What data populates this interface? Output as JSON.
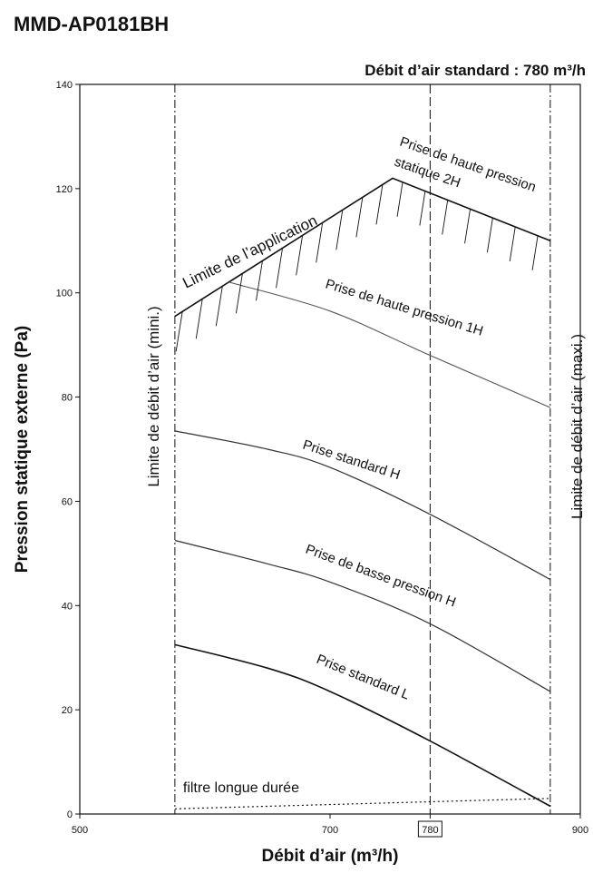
{
  "model": "MMD-AP0181BH",
  "chart_data": {
    "type": "line",
    "title": "MMD-AP0181BH",
    "standard_flow_label": "Débit d’air standard : 780 m³/h",
    "standard_flow": 780,
    "xlabel": "Débit d’air (m³/h)",
    "ylabel": "Pression statique externe (Pa)",
    "xlim": [
      500,
      900
    ],
    "ylim": [
      0,
      140
    ],
    "x_ticks": [
      500,
      700,
      780,
      900
    ],
    "y_ticks": [
      0,
      20,
      40,
      60,
      80,
      100,
      120,
      140
    ],
    "grid": false,
    "limits": {
      "min_flow": 576,
      "max_flow": 876,
      "min_label": "Limite de débit d’air (mini.)",
      "max_label": "Limite de débit d’air (maxi.)"
    },
    "application_limit": {
      "label": "Limite de l’application",
      "x": [
        576,
        750,
        876
      ],
      "y": [
        95.5,
        122,
        110
      ]
    },
    "series": [
      {
        "name": "Prise de haute pression statique 2H",
        "x": [
          576,
          750,
          876
        ],
        "y": [
          95.5,
          122,
          110
        ]
      },
      {
        "name": "Prise de haute pression 1H",
        "x": [
          620,
          700,
          780,
          876
        ],
        "y": [
          102,
          96.5,
          88,
          78
        ]
      },
      {
        "name": "Prise standard H",
        "x": [
          576,
          650,
          700,
          780,
          876
        ],
        "y": [
          73.5,
          70,
          66.5,
          57.5,
          45
        ]
      },
      {
        "name": "Prise de basse pression H",
        "x": [
          576,
          650,
          700,
          780,
          876
        ],
        "y": [
          52.5,
          48,
          44.5,
          36.5,
          23.5
        ]
      },
      {
        "name": "Prise standard L",
        "x": [
          576,
          650,
          700,
          780,
          876
        ],
        "y": [
          32.5,
          28,
          23.5,
          14,
          1.5
        ]
      },
      {
        "name": "filtre longue durée",
        "x": [
          576,
          876
        ],
        "y": [
          1,
          3
        ]
      }
    ]
  }
}
